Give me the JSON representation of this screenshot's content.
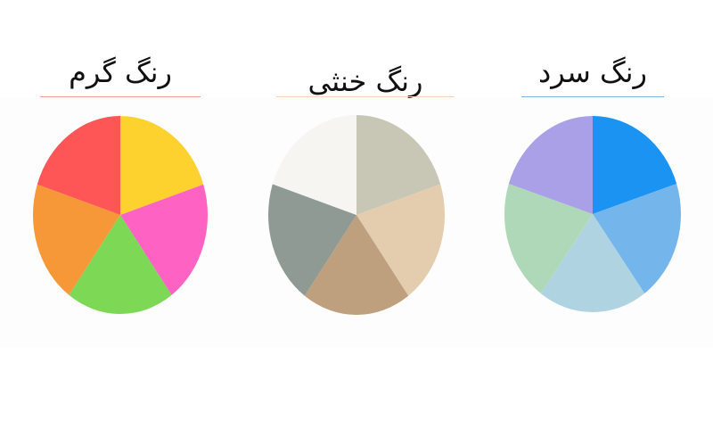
{
  "chart_data": [
    {
      "type": "pie",
      "title": "رنگ گرم",
      "values": [
        1,
        1,
        1,
        1,
        1
      ],
      "colors": [
        "#fdd22f",
        "#fe62c3",
        "#7dd855",
        "#f79838",
        "#fe5657"
      ],
      "underline_color": "#f0a0a0"
    },
    {
      "type": "pie",
      "title": "رنگ خنثی",
      "values": [
        1,
        1,
        1,
        1,
        1
      ],
      "colors": [
        "#c8c6b4",
        "#e3cdae",
        "#bea07e",
        "#8e9a93",
        "#f7f5f2"
      ],
      "underline_color": "#f2d6c4"
    },
    {
      "type": "pie",
      "title": "رنگ سرد",
      "values": [
        1,
        1,
        1,
        1,
        1
      ],
      "colors": [
        "#1a93f2",
        "#74b6ec",
        "#b0d3e2",
        "#afd8b8",
        "#aaa0e8"
      ],
      "underline_color": "#7ab4e8"
    }
  ]
}
